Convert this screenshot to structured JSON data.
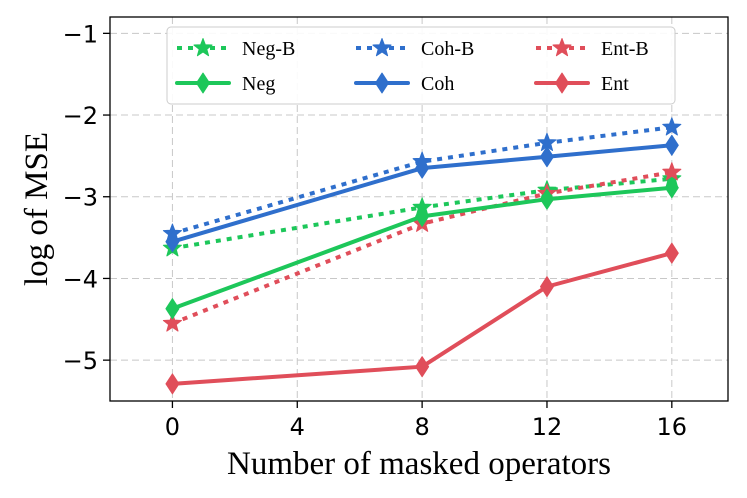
{
  "chart_data": {
    "type": "line",
    "title": "",
    "xlabel": "Number of masked operators",
    "ylabel": "log of MSE",
    "xlim": [
      -2,
      17.8
    ],
    "ylim": [
      -5.5,
      -0.8
    ],
    "xticks": [
      0,
      4,
      8,
      12,
      16
    ],
    "xtick_labels": [
      "0",
      "4",
      "8",
      "12",
      "16"
    ],
    "yticks": [
      -5,
      -4,
      -3,
      -2,
      -1
    ],
    "ytick_labels": [
      "−5",
      "−4",
      "−3",
      "−2",
      "−1"
    ],
    "grid": true,
    "legend_position": "top",
    "series": [
      {
        "name": "Neg-B",
        "color": "#1dc75a",
        "style": "dotted",
        "marker": "star",
        "x": [
          0,
          8,
          12,
          16
        ],
        "values": [
          -3.63,
          -3.13,
          -2.92,
          -2.78
        ]
      },
      {
        "name": "Coh-B",
        "color": "#2f6fcc",
        "style": "dotted",
        "marker": "star",
        "x": [
          0,
          8,
          12,
          16
        ],
        "values": [
          -3.45,
          -2.57,
          -2.34,
          -2.15
        ]
      },
      {
        "name": "Ent-B",
        "color": "#e04e5a",
        "style": "dotted",
        "marker": "star",
        "x": [
          0,
          8,
          12,
          16
        ],
        "values": [
          -4.55,
          -3.33,
          -2.96,
          -2.7
        ]
      },
      {
        "name": "Neg",
        "color": "#1dc75a",
        "style": "solid",
        "marker": "diamond",
        "x": [
          0,
          8,
          12,
          16
        ],
        "values": [
          -4.37,
          -3.24,
          -3.03,
          -2.89
        ]
      },
      {
        "name": "Coh",
        "color": "#2f6fcc",
        "style": "solid",
        "marker": "diamond",
        "x": [
          0,
          8,
          12,
          16
        ],
        "values": [
          -3.55,
          -2.65,
          -2.51,
          -2.37
        ]
      },
      {
        "name": "Ent",
        "color": "#e04e5a",
        "style": "solid",
        "marker": "diamond",
        "x": [
          0,
          8,
          12,
          16
        ],
        "values": [
          -5.29,
          -5.08,
          -4.1,
          -3.69
        ]
      }
    ],
    "legend_order": [
      "Neg-B",
      "Coh-B",
      "Ent-B",
      "Neg",
      "Coh",
      "Ent"
    ]
  }
}
